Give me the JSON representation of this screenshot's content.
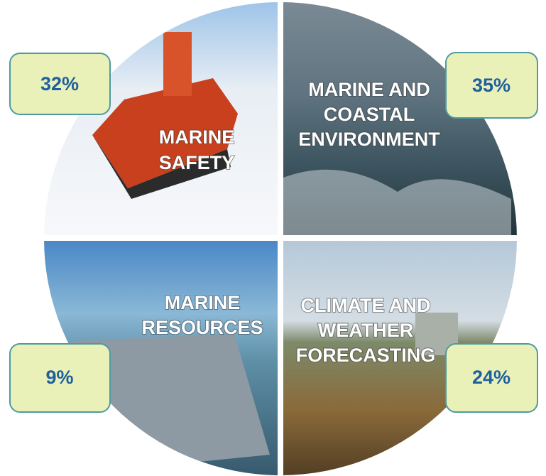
{
  "quadrants": [
    {
      "label": [
        "MARINE",
        "SAFETY"
      ],
      "share": "32%"
    },
    {
      "label": [
        "MARINE AND",
        "COASTAL",
        "ENVIRONMENT"
      ],
      "share": "35%"
    },
    {
      "label": [
        "MARINE",
        "RESOURCES"
      ],
      "share": "9%"
    },
    {
      "label": [
        "CLIMATE AND",
        "WEATHER",
        "FORECASTING"
      ],
      "share": "24%"
    }
  ]
}
